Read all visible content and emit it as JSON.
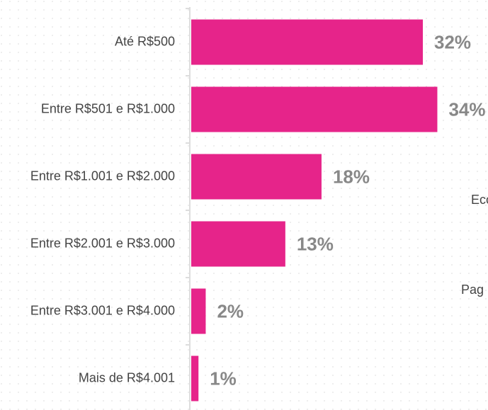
{
  "chart_data": {
    "type": "bar",
    "orientation": "horizontal",
    "categories": [
      "Até R$500",
      "Entre R$501 e R$1.000",
      "Entre R$1.001 e R$2.000",
      "Entre R$2.001 e R$3.000",
      "Entre R$3.001 e R$4.000",
      "Mais de R$4.001"
    ],
    "values": [
      32,
      34,
      18,
      13,
      2,
      1
    ],
    "value_labels": [
      "32%",
      "34%",
      "18%",
      "13%",
      "2%",
      "1%"
    ],
    "color": "#e6248a",
    "xlim": [
      0,
      41
    ],
    "annotations": [
      "Eco",
      "Pag"
    ]
  }
}
